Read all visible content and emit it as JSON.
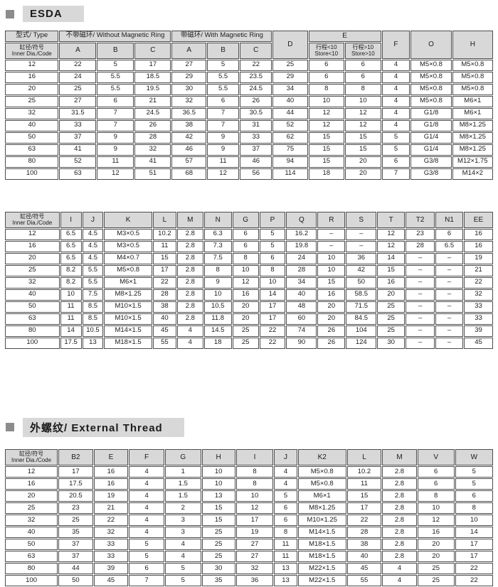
{
  "titles": {
    "esda": "ESDA",
    "external_thread": "外螺纹/ External Thread"
  },
  "colors": {
    "header_bg": "#d8d8d8",
    "title_bg": "#d8d8d8",
    "bullet": "#8c8c8c",
    "border": "#4d4d4d"
  },
  "table1": {
    "type_label": "型式/ Type",
    "without_ring_label": "不带磁环/ Without Magnetic Ring",
    "with_ring_label": "带磁环/ With Magnetic Ring",
    "inner_dia_zh": "缸径/符号",
    "inner_dia_en": "Inner Dia./Code",
    "sub_cols": [
      "A",
      "B",
      "C",
      "A",
      "B",
      "C"
    ],
    "col_D": "D",
    "col_E": "E",
    "col_F": "F",
    "col_O": "O",
    "col_H": "H",
    "e_sub1_zh": "行程<10",
    "e_sub1_en": "Store<10",
    "e_sub2_zh": "行程>10",
    "e_sub2_en": "Store>10",
    "rows": [
      [
        "12",
        "22",
        "5",
        "17",
        "27",
        "5",
        "22",
        "25",
        "6",
        "6",
        "4",
        "M5×0.8",
        "M5×0.8"
      ],
      [
        "16",
        "24",
        "5.5",
        "18.5",
        "29",
        "5.5",
        "23.5",
        "29",
        "6",
        "6",
        "4",
        "M5×0.8",
        "M5×0.8"
      ],
      [
        "20",
        "25",
        "5.5",
        "19.5",
        "30",
        "5.5",
        "24.5",
        "34",
        "8",
        "8",
        "4",
        "M5×0.8",
        "M5×0.8"
      ],
      [
        "25",
        "27",
        "6",
        "21",
        "32",
        "6",
        "26",
        "40",
        "10",
        "10",
        "4",
        "M5×0.8",
        "M6×1"
      ],
      [
        "32",
        "31.5",
        "7",
        "24.5",
        "36.5",
        "7",
        "30.5",
        "44",
        "12",
        "12",
        "4",
        "G1/8",
        "M6×1"
      ],
      [
        "40",
        "33",
        "7",
        "26",
        "38",
        "7",
        "31",
        "52",
        "12",
        "12",
        "4",
        "G1/8",
        "M8×1.25"
      ],
      [
        "50",
        "37",
        "9",
        "28",
        "42",
        "9",
        "33",
        "62",
        "15",
        "15",
        "5",
        "G1/4",
        "M8×1.25"
      ],
      [
        "63",
        "41",
        "9",
        "32",
        "46",
        "9",
        "37",
        "75",
        "15",
        "15",
        "5",
        "G1/4",
        "M8×1.25"
      ],
      [
        "80",
        "52",
        "11",
        "41",
        "57",
        "11",
        "46",
        "94",
        "15",
        "20",
        "6",
        "G3/8",
        "M12×1.75"
      ],
      [
        "100",
        "63",
        "12",
        "51",
        "68",
        "12",
        "56",
        "114",
        "18",
        "20",
        "7",
        "G3/8",
        "M14×2"
      ]
    ]
  },
  "table2": {
    "inner_dia_zh": "缸径/符号",
    "inner_dia_en": "Inner Dia./Code",
    "columns": [
      "I",
      "J",
      "K",
      "L",
      "M",
      "N",
      "G",
      "P",
      "Q",
      "R",
      "S",
      "T",
      "T2",
      "N1",
      "EE"
    ],
    "rows": [
      [
        "12",
        "6.5",
        "4.5",
        "M3×0.5",
        "10.2",
        "2.8",
        "6.3",
        "6",
        "5",
        "16.2",
        "–",
        "–",
        "12",
        "23",
        "6",
        "16"
      ],
      [
        "16",
        "6.5",
        "4.5",
        "M3×0.5",
        "11",
        "2.8",
        "7.3",
        "6",
        "5",
        "19.8",
        "–",
        "–",
        "12",
        "28",
        "6.5",
        "16"
      ],
      [
        "20",
        "6.5",
        "4.5",
        "M4×0.7",
        "15",
        "2.8",
        "7.5",
        "8",
        "6",
        "24",
        "10",
        "36",
        "14",
        "–",
        "–",
        "19"
      ],
      [
        "25",
        "8.2",
        "5.5",
        "M5×0.8",
        "17",
        "2.8",
        "8",
        "10",
        "8",
        "28",
        "10",
        "42",
        "15",
        "–",
        "–",
        "21"
      ],
      [
        "32",
        "8.2",
        "5.5",
        "M6×1",
        "22",
        "2.8",
        "9",
        "12",
        "10",
        "34",
        "15",
        "50",
        "16",
        "–",
        "–",
        "22"
      ],
      [
        "40",
        "10",
        "7.5",
        "M8×1.25",
        "28",
        "2.8",
        "10",
        "16",
        "14",
        "40",
        "16",
        "58.5",
        "20",
        "–",
        "–",
        "32"
      ],
      [
        "50",
        "11",
        "8.5",
        "M10×1.5",
        "38",
        "2.8",
        "10.5",
        "20",
        "17",
        "48",
        "20",
        "71.5",
        "25",
        "–",
        "–",
        "33"
      ],
      [
        "63",
        "11",
        "8.5",
        "M10×1.5",
        "40",
        "2.8",
        "11.8",
        "20",
        "17",
        "60",
        "20",
        "84.5",
        "25",
        "–",
        "–",
        "33"
      ],
      [
        "80",
        "14",
        "10.5",
        "M14×1.5",
        "45",
        "4",
        "14.5",
        "25",
        "22",
        "74",
        "26",
        "104",
        "25",
        "–",
        "–",
        "39"
      ],
      [
        "100",
        "17.5",
        "13",
        "M18×1.5",
        "55",
        "4",
        "18",
        "25",
        "22",
        "90",
        "26",
        "124",
        "30",
        "–",
        "–",
        "45"
      ]
    ]
  },
  "table3": {
    "inner_dia_zh": "缸径/符号",
    "inner_dia_en": "Inner Dia./Code",
    "columns": [
      "B2",
      "E",
      "F",
      "G",
      "H",
      "I",
      "J",
      "K2",
      "L",
      "M",
      "V",
      "W"
    ],
    "rows": [
      [
        "12",
        "17",
        "16",
        "4",
        "1",
        "10",
        "8",
        "4",
        "M5×0.8",
        "10.2",
        "2.8",
        "6",
        "5"
      ],
      [
        "16",
        "17.5",
        "16",
        "4",
        "1.5",
        "10",
        "8",
        "4",
        "M5×0.8",
        "11",
        "2.8",
        "6",
        "5"
      ],
      [
        "20",
        "20.5",
        "19",
        "4",
        "1.5",
        "13",
        "10",
        "5",
        "M6×1",
        "15",
        "2.8",
        "8",
        "6"
      ],
      [
        "25",
        "23",
        "21",
        "4",
        "2",
        "15",
        "12",
        "6",
        "M8×1.25",
        "17",
        "2.8",
        "10",
        "8"
      ],
      [
        "32",
        "25",
        "22",
        "4",
        "3",
        "15",
        "17",
        "6",
        "M10×1.25",
        "22",
        "2.8",
        "12",
        "10"
      ],
      [
        "40",
        "35",
        "32",
        "4",
        "3",
        "25",
        "19",
        "8",
        "M14×1.5",
        "28",
        "2.8",
        "16",
        "14"
      ],
      [
        "50",
        "37",
        "33",
        "5",
        "4",
        "25",
        "27",
        "11",
        "M18×1.5",
        "38",
        "2.8",
        "20",
        "17"
      ],
      [
        "63",
        "37",
        "33",
        "5",
        "4",
        "25",
        "27",
        "11",
        "M18×1.5",
        "40",
        "2.8",
        "20",
        "17"
      ],
      [
        "80",
        "44",
        "39",
        "6",
        "5",
        "30",
        "32",
        "13",
        "M22×1.5",
        "45",
        "4",
        "25",
        "22"
      ],
      [
        "100",
        "50",
        "45",
        "7",
        "5",
        "35",
        "36",
        "13",
        "M22×1.5",
        "55",
        "4",
        "25",
        "22"
      ]
    ]
  }
}
